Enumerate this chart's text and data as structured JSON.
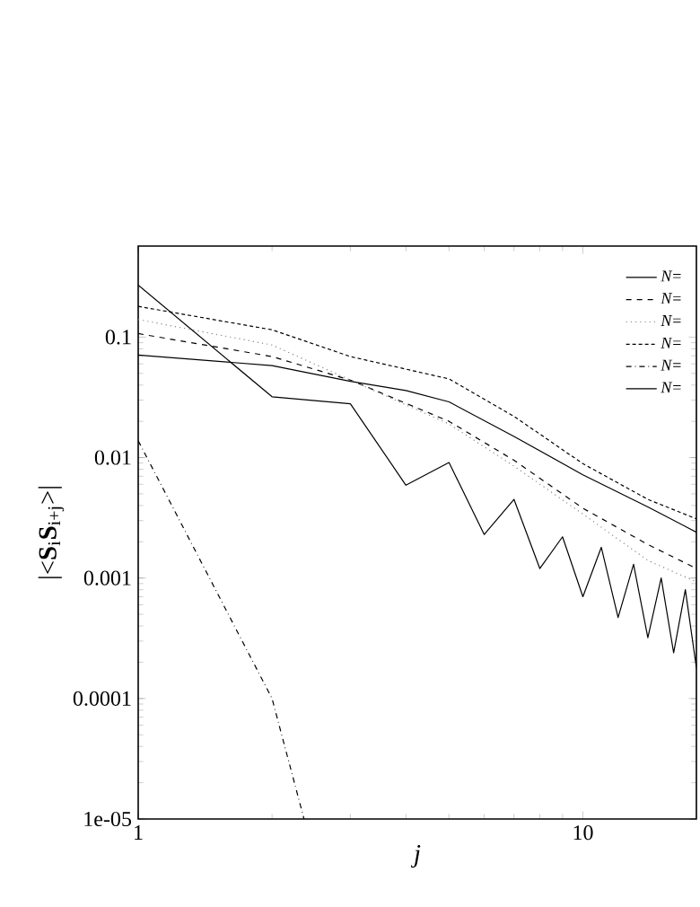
{
  "chart_data": {
    "type": "line",
    "xlabel": "*j*",
    "ylabel": "|<**S**$_{i}$**S**$_{i+j}$>|",
    "log": "xy",
    "xlim": [
      1,
      18
    ],
    "xticks": [
      1,
      10
    ],
    "ylim": [
      1e-05,
      0.57
    ],
    "yticks": [
      {
        "value": 1e-05,
        "label": "1e-05"
      },
      {
        "value": 0.0001,
        "label": "0.0001"
      },
      {
        "value": 0.001,
        "label": "0.001"
      },
      {
        "value": 0.01,
        "label": "0.01"
      },
      {
        "value": 0.1,
        "label": "0.1"
      }
    ],
    "legend": "top right",
    "grid": false,
    "marker": "none",
    "series": [
      {
        "name": "*N*=",
        "color": "#000000",
        "line_style": "solid",
        "x": [
          1,
          2,
          3,
          4,
          5,
          7,
          10,
          14,
          18
        ],
        "values": [
          0.071,
          0.058,
          0.043,
          0.036,
          0.029,
          0.015,
          0.0072,
          0.0039,
          0.0024
        ]
      },
      {
        "name": "*N*=",
        "color": "#000000",
        "line_style": "dashed",
        "x": [
          1,
          2,
          3,
          5,
          7,
          10,
          14,
          18
        ],
        "values": [
          0.107,
          0.069,
          0.044,
          0.02,
          0.0095,
          0.0038,
          0.0019,
          0.0012
        ]
      },
      {
        "name": "*N*=",
        "color": "#888888",
        "line_style": "dotted",
        "x": [
          1,
          2,
          3,
          5,
          7,
          10,
          14,
          18
        ],
        "values": [
          0.14,
          0.086,
          0.044,
          0.019,
          0.0085,
          0.0034,
          0.0014,
          0.00093
        ]
      },
      {
        "name": "*N*=",
        "color": "#000000",
        "line_style": "densely dashed",
        "x": [
          1,
          2,
          3,
          5,
          7,
          10,
          14,
          18
        ],
        "values": [
          0.18,
          0.115,
          0.069,
          0.045,
          0.022,
          0.0089,
          0.0045,
          0.0031
        ]
      },
      {
        "name": "*N*=",
        "color": "#000000",
        "line_style": "dashdot",
        "x": [
          1,
          2,
          2.36
        ],
        "values": [
          0.0138,
          0.0001,
          1e-05
        ]
      },
      {
        "name": "*N*=",
        "color": "#000000",
        "line_style": "solid",
        "x": [
          1,
          2,
          3,
          4,
          5,
          6,
          7,
          8,
          9,
          10,
          11,
          12,
          13,
          14,
          15,
          16,
          17,
          18
        ],
        "values": [
          0.27,
          0.032,
          0.028,
          0.0059,
          0.0091,
          0.0023,
          0.0045,
          0.0012,
          0.0022,
          0.0007,
          0.0018,
          0.00047,
          0.0013,
          0.00032,
          0.001,
          0.00024,
          0.0008,
          0.00018
        ]
      }
    ]
  }
}
